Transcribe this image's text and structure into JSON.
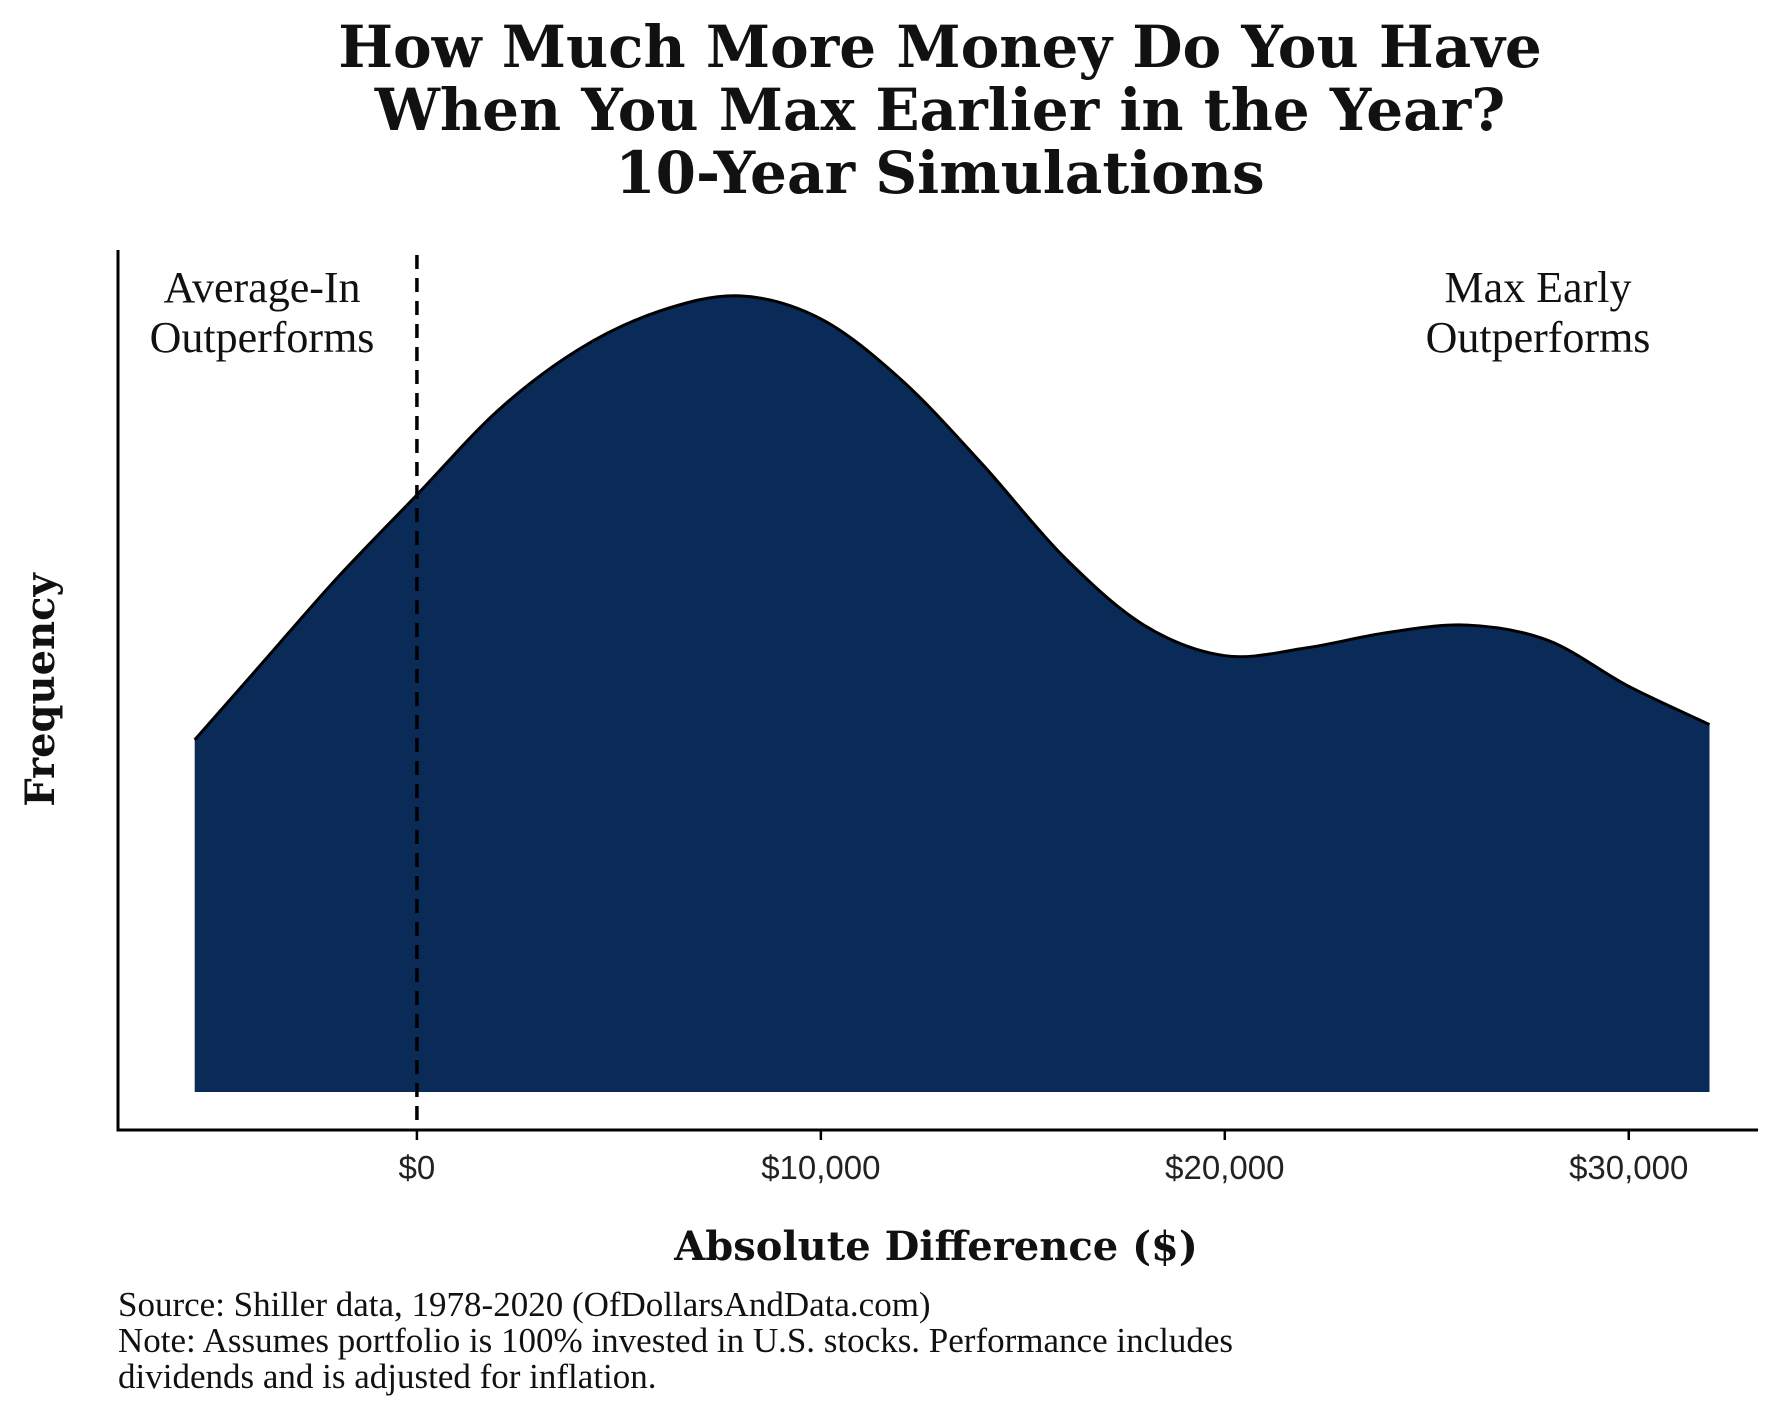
{
  "chart_data": {
    "type": "area",
    "title_lines": [
      "How Much More Money Do You Have",
      "When You Max Earlier in the Year?",
      "10-Year Simulations"
    ],
    "xlabel": "Absolute Difference ($)",
    "ylabel": "Frequency",
    "x_ticks": [
      0,
      10000,
      20000,
      30000
    ],
    "x_tick_labels": [
      "$0",
      "$10,000",
      "$20,000",
      "$30,000"
    ],
    "xlim": [
      -7400,
      33200
    ],
    "ylim": [
      0,
      1.1
    ],
    "grid": false,
    "fill_color": "#0a2b57",
    "outline_color": "#000000",
    "reference_line": {
      "x": 0,
      "style": "dashed"
    },
    "annotations": {
      "left": [
        "Average-In",
        "Outperforms"
      ],
      "right": [
        "Max Early",
        "Outperforms"
      ]
    },
    "density": {
      "x": [
        -5500,
        -4000,
        -2000,
        0,
        2000,
        4000,
        6000,
        8000,
        10000,
        12000,
        14000,
        16000,
        18000,
        20000,
        22000,
        24000,
        26000,
        28000,
        30000,
        32000
      ],
      "y": [
        0.46,
        0.55,
        0.67,
        0.78,
        0.89,
        0.97,
        1.02,
        1.04,
        1.01,
        0.93,
        0.82,
        0.7,
        0.61,
        0.57,
        0.58,
        0.6,
        0.61,
        0.59,
        0.53,
        0.48
      ]
    }
  },
  "footer": {
    "source": "Source: Shiller data, 1978-2020 (OfDollarsAndData.com)",
    "note_line1": "Note: Assumes portfolio is 100% invested in U.S. stocks. Performance includes",
    "note_line2": "dividends and is adjusted for inflation."
  }
}
